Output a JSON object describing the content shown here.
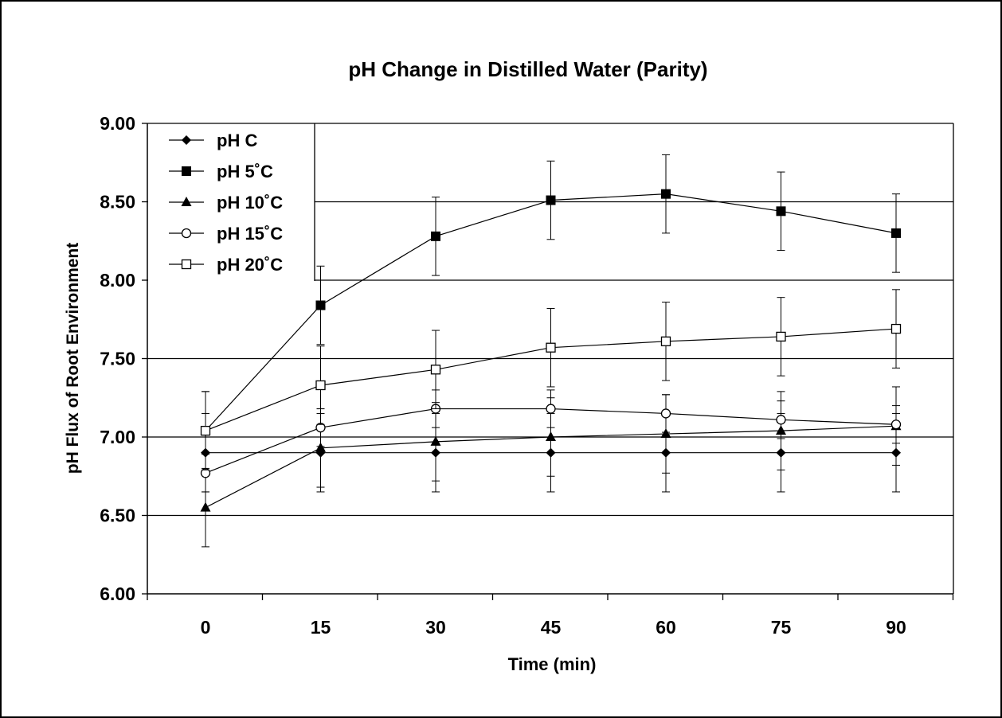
{
  "chart_data": {
    "type": "line",
    "title": "pH Change in Distilled Water (Parity)",
    "xlabel": "Time (min)",
    "ylabel": "pH Flux of Root Environment",
    "x": [
      0,
      15,
      30,
      45,
      60,
      75,
      90
    ],
    "x_tick_labels": [
      "0",
      "15",
      "30",
      "45",
      "60",
      "75",
      "90"
    ],
    "ylim": [
      6.0,
      9.0
    ],
    "y_ticks": [
      6.0,
      6.5,
      7.0,
      7.5,
      8.0,
      8.5,
      9.0
    ],
    "y_tick_labels": [
      "6.00",
      "6.50",
      "7.00",
      "7.50",
      "8.00",
      "8.50",
      "9.00"
    ],
    "grid": "horizontal",
    "legend_position": "top-left",
    "series": [
      {
        "name": "pH C",
        "marker": "diamond-filled",
        "values": [
          6.9,
          6.9,
          6.9,
          6.9,
          6.9,
          6.9,
          6.9
        ],
        "errors": [
          0.25,
          0.25,
          0.25,
          0.25,
          0.25,
          0.25,
          0.25
        ]
      },
      {
        "name": "pH 5˚C",
        "marker": "square-filled",
        "values": [
          7.04,
          7.84,
          8.28,
          8.51,
          8.55,
          8.44,
          8.3
        ],
        "errors": [
          0.25,
          0.25,
          0.25,
          0.25,
          0.25,
          0.25,
          0.25
        ]
      },
      {
        "name": "pH 10˚C",
        "marker": "triangle-filled",
        "values": [
          6.55,
          6.93,
          6.97,
          7.0,
          7.02,
          7.04,
          7.07
        ],
        "errors": [
          0.25,
          0.25,
          0.25,
          0.25,
          0.25,
          0.25,
          0.25
        ]
      },
      {
        "name": "pH 15˚C",
        "marker": "circle-open",
        "values": [
          6.77,
          7.06,
          7.18,
          7.18,
          7.15,
          7.11,
          7.08
        ],
        "errors": [
          0.12,
          0.12,
          0.12,
          0.12,
          0.12,
          0.12,
          0.12
        ]
      },
      {
        "name": "pH 20˚C",
        "marker": "square-open",
        "values": [
          7.04,
          7.33,
          7.43,
          7.57,
          7.61,
          7.64,
          7.69
        ],
        "errors": [
          0.25,
          0.25,
          0.25,
          0.25,
          0.25,
          0.25,
          0.25
        ]
      }
    ]
  }
}
